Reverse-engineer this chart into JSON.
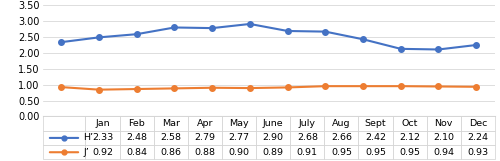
{
  "months": [
    "Jan",
    "Feb",
    "Mar",
    "Apr",
    "May",
    "June",
    "July",
    "Aug",
    "Sept",
    "Oct",
    "Nov",
    "Dec"
  ],
  "H_values": [
    2.33,
    2.48,
    2.58,
    2.79,
    2.77,
    2.9,
    2.68,
    2.66,
    2.42,
    2.12,
    2.1,
    2.24
  ],
  "J_values": [
    0.92,
    0.84,
    0.86,
    0.88,
    0.9,
    0.89,
    0.91,
    0.95,
    0.95,
    0.95,
    0.94,
    0.93
  ],
  "H_color": "#4472C4",
  "J_color": "#ED7D31",
  "H_label": "H’",
  "J_label": "J’",
  "ylim": [
    0.0,
    3.5
  ],
  "yticks": [
    0.0,
    0.5,
    1.0,
    1.5,
    2.0,
    2.5,
    3.0,
    3.5
  ],
  "background_color": "#FFFFFF",
  "grid_color": "#D0D0D0",
  "marker_size": 4,
  "line_width": 1.5,
  "table_font_size": 6.8,
  "tick_font_size": 7.0
}
